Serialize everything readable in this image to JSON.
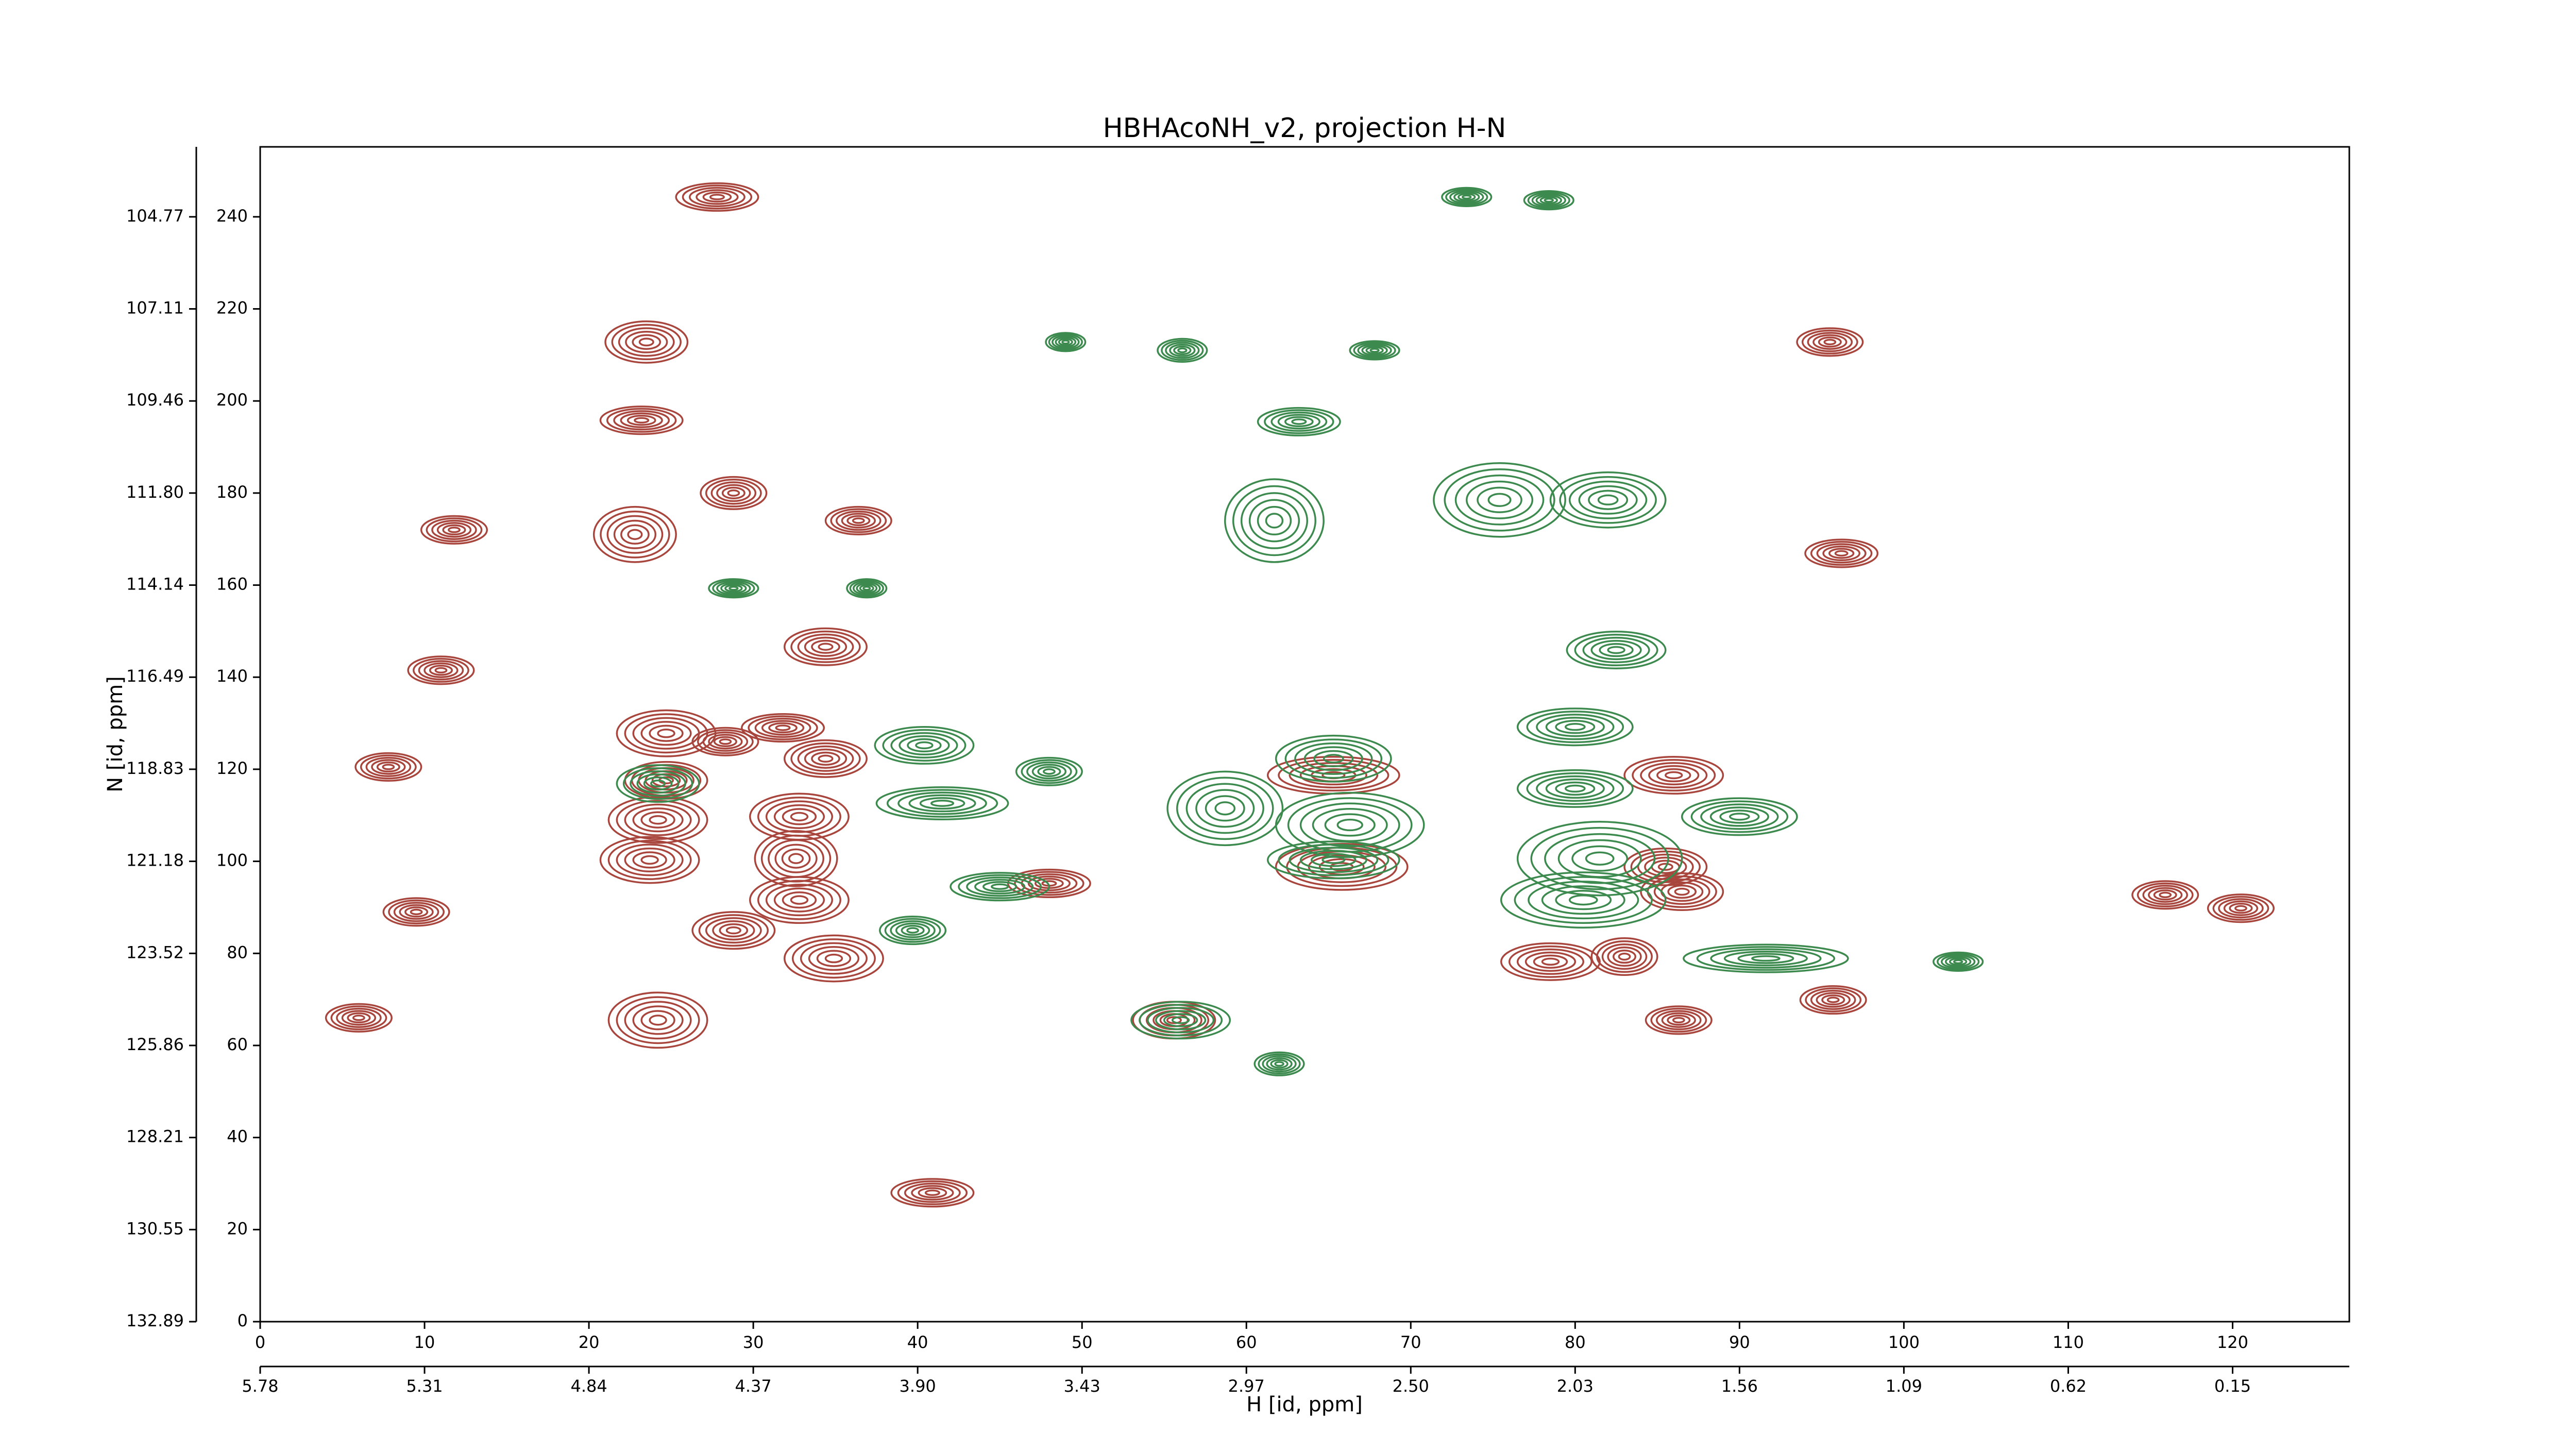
{
  "chart_data": {
    "type": "contour",
    "title": "HBHAcoNH_v2, projection H-N",
    "xlabel": "H [id, ppm]",
    "ylabel": "N [id, ppm]",
    "xlim": [
      0,
      127.1
    ],
    "ylim": [
      0,
      255.2
    ],
    "xticks": [
      0,
      10,
      20,
      30,
      40,
      50,
      60,
      70,
      80,
      90,
      100,
      110,
      120
    ],
    "yticks": [
      0,
      20,
      40,
      60,
      80,
      100,
      120,
      140,
      160,
      180,
      200,
      220,
      240
    ],
    "x2ticks": [
      {
        "value": 0,
        "label": "5.78"
      },
      {
        "value": 10,
        "label": "5.31"
      },
      {
        "value": 20,
        "label": "4.84"
      },
      {
        "value": 30,
        "label": "4.37"
      },
      {
        "value": 40,
        "label": "3.90"
      },
      {
        "value": 50,
        "label": "3.43"
      },
      {
        "value": 60,
        "label": "2.97"
      },
      {
        "value": 70,
        "label": "2.50"
      },
      {
        "value": 80,
        "label": "2.03"
      },
      {
        "value": 90,
        "label": "1.56"
      },
      {
        "value": 100,
        "label": "1.09"
      },
      {
        "value": 110,
        "label": "0.62"
      },
      {
        "value": 120,
        "label": "0.15"
      }
    ],
    "y2ticks": [
      {
        "value": 0,
        "label": "132.89"
      },
      {
        "value": 20,
        "label": "130.55"
      },
      {
        "value": 40,
        "label": "128.21"
      },
      {
        "value": 60,
        "label": "125.86"
      },
      {
        "value": 80,
        "label": "123.52"
      },
      {
        "value": 100,
        "label": "121.18"
      },
      {
        "value": 120,
        "label": "118.83"
      },
      {
        "value": 140,
        "label": "116.49"
      },
      {
        "value": 160,
        "label": "114.14"
      },
      {
        "value": 180,
        "label": "111.80"
      },
      {
        "value": 200,
        "label": "109.46"
      },
      {
        "value": 220,
        "label": "107.11"
      },
      {
        "value": 240,
        "label": "104.77"
      }
    ],
    "series": [
      {
        "color": "#a8463e",
        "x": [
          27.8,
          23.5,
          23.2,
          22.8,
          95.5,
          96.2,
          36.4,
          28.8,
          34.4,
          24.7,
          28.3,
          31.8,
          34.4,
          24.7,
          24.2,
          23.7,
          32.8,
          32.6,
          32.8,
          28.8,
          34.9,
          24.2,
          40.9,
          9.5,
          55.6,
          65.3,
          65.8,
          78.5,
          83.0,
          85.5,
          86.5,
          86.0,
          95.7,
          115.9,
          120.5,
          11.0,
          11.8,
          7.8,
          48.0,
          6.0,
          86.3
        ],
        "y": [
          244.3,
          212.8,
          195.8,
          171.0,
          212.8,
          166.9,
          174.0,
          180.0,
          146.6,
          127.8,
          126.0,
          129.0,
          122.3,
          117.6,
          109.0,
          100.3,
          109.7,
          100.6,
          91.6,
          85.0,
          78.9,
          65.5,
          28.0,
          89.0,
          65.5,
          118.7,
          98.8,
          78.2,
          79.3,
          98.8,
          93.4,
          118.7,
          69.9,
          92.7,
          89.8,
          141.5,
          172.0,
          120.5,
          95.2,
          66.0,
          65.5
        ],
        "rx": [
          2.5,
          2.5,
          2.5,
          2.5,
          2.0,
          2.2,
          2.0,
          2.0,
          2.5,
          3.0,
          2.0,
          2.5,
          2.5,
          2.5,
          3.0,
          3.0,
          3.0,
          2.5,
          3.0,
          2.5,
          3.0,
          3.0,
          2.5,
          2.0,
          2.5,
          4.0,
          4.0,
          3.0,
          2.0,
          2.5,
          2.5,
          3.0,
          2.0,
          2.0,
          2.0,
          2.0,
          2.0,
          2.0,
          2.5,
          2.0,
          2.0
        ],
        "ry": [
          3.0,
          4.5,
          3.0,
          6.0,
          3.0,
          3.0,
          3.0,
          3.5,
          4.0,
          5.0,
          3.0,
          3.0,
          4.0,
          4.0,
          5.0,
          5.0,
          5.0,
          6.0,
          5.0,
          4.0,
          5.0,
          6.0,
          3.0,
          3.0,
          4.0,
          4.0,
          5.0,
          4.0,
          4.0,
          4.0,
          4.0,
          4.0,
          3.0,
          3.0,
          3.0,
          3.0,
          3.0,
          3.0,
          3.0,
          3.0,
          3.0
        ]
      },
      {
        "color": "#3d8a4f",
        "x": [
          56.1,
          63.2,
          61.7,
          75.4,
          82.0,
          78.4,
          73.4,
          82.5,
          40.4,
          41.5,
          48.0,
          45.0,
          58.7,
          66.3,
          65.3,
          65.3,
          80.0,
          80.0,
          81.5,
          80.5,
          90.0,
          91.6,
          56.0,
          39.7,
          24.2,
          62.0,
          103.3,
          28.8,
          36.9,
          49.0,
          67.8
        ],
        "y": [
          211.0,
          195.5,
          174.0,
          178.5,
          178.5,
          243.6,
          244.3,
          145.9,
          125.2,
          112.6,
          119.5,
          94.5,
          111.5,
          107.9,
          100.3,
          122.3,
          129.2,
          115.8,
          100.6,
          91.6,
          109.7,
          78.9,
          65.5,
          85.0,
          116.9,
          56.0,
          78.2,
          159.3,
          159.3,
          212.8,
          211.0
        ],
        "rx": [
          1.5,
          2.5,
          3.0,
          4.0,
          3.5,
          1.5,
          1.5,
          3.0,
          3.0,
          4.0,
          2.0,
          3.0,
          3.5,
          4.5,
          4.0,
          3.5,
          3.5,
          3.5,
          5.0,
          5.0,
          3.5,
          5.0,
          3.0,
          2.0,
          2.5,
          1.5,
          1.5,
          1.5,
          1.2,
          1.2,
          1.5
        ],
        "ry": [
          2.5,
          3.0,
          9.0,
          8.0,
          6.0,
          2.0,
          2.0,
          4.0,
          4.0,
          3.5,
          3.0,
          3.0,
          8.0,
          7.0,
          4.0,
          5.0,
          4.0,
          4.0,
          8.0,
          6.0,
          4.0,
          3.0,
          4.0,
          3.0,
          4.0,
          2.5,
          2.0,
          2.0,
          2.0,
          2.0,
          2.0
        ]
      }
    ]
  }
}
